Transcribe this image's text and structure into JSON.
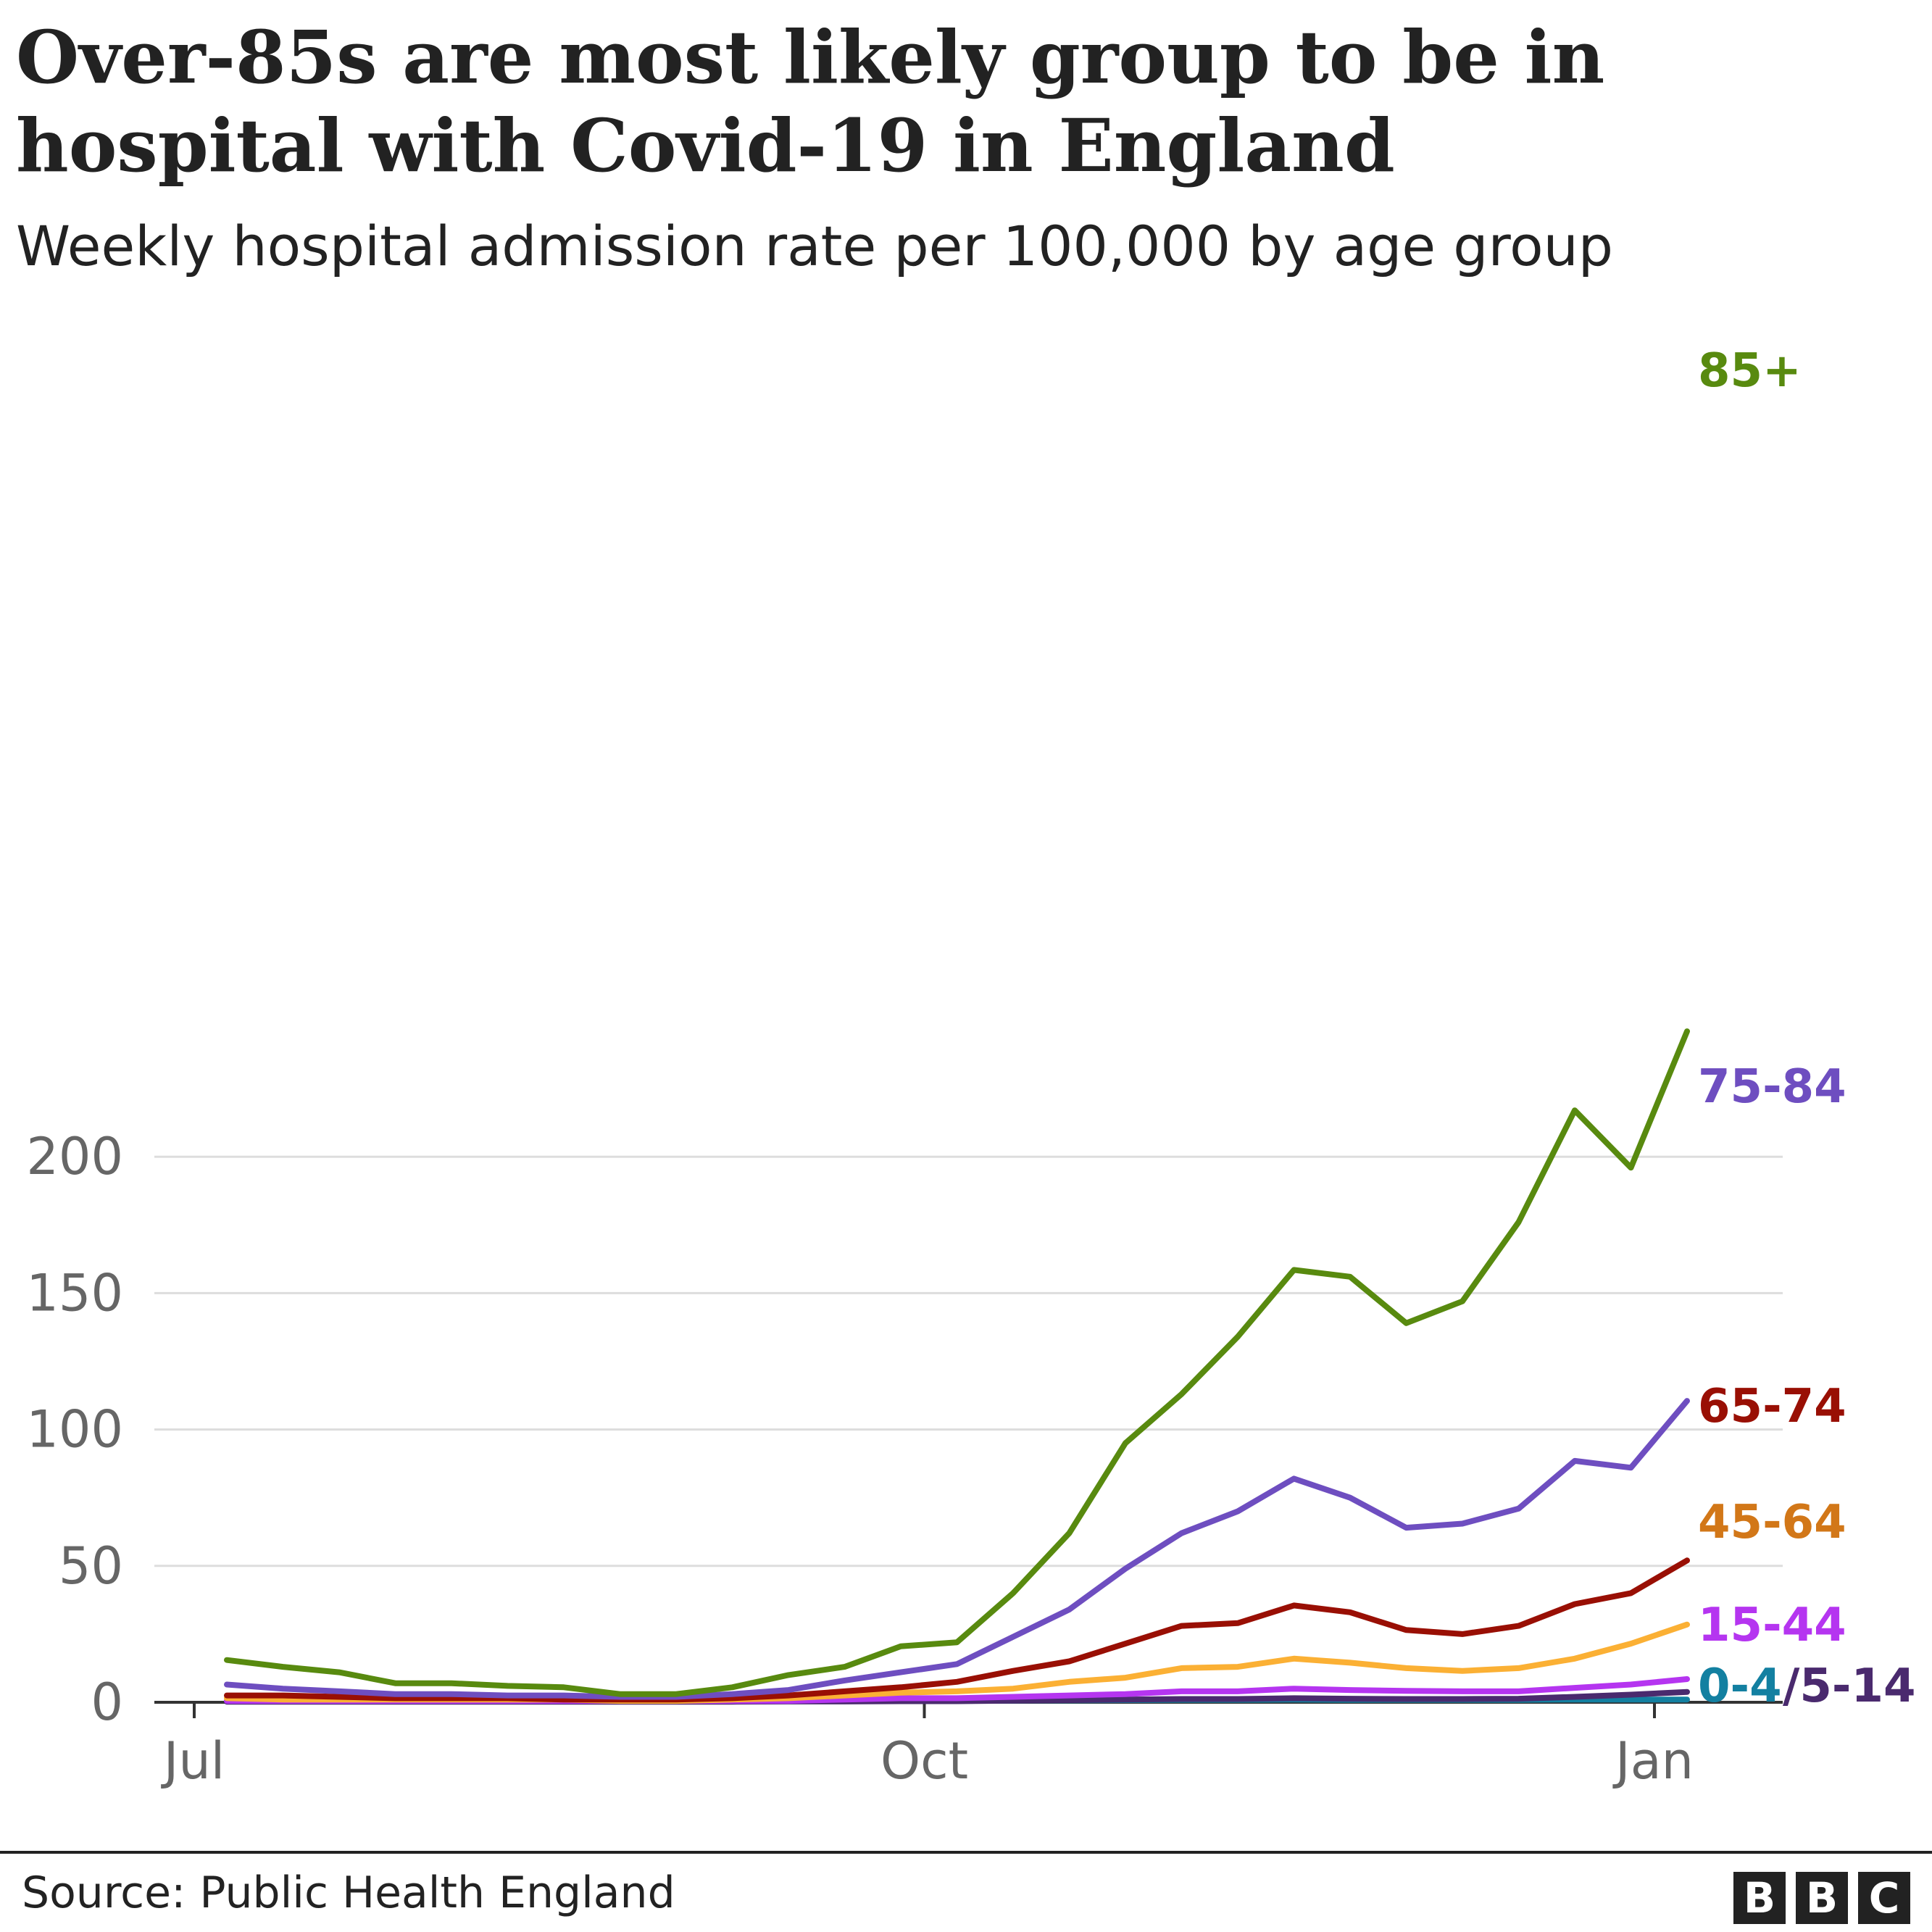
{
  "header": {
    "title": "Over-85s are most likely group to be in hospital with Covid-19 in England",
    "subtitle": "Weekly hospital admission rate per 100,000 by age group"
  },
  "footer": {
    "source": "Source: Public Health England",
    "logo_letters": [
      "B",
      "B",
      "C"
    ]
  },
  "chart_data": {
    "type": "line",
    "title": "Over-85s are most likely group to be in hospital with Covid-19 in England",
    "subtitle": "Weekly hospital admission rate per 100,000 by age group",
    "x_axis": {
      "ticks": [
        "Jul",
        "Oct",
        "Jan"
      ],
      "tick_weeks": [
        0,
        13,
        26
      ]
    },
    "y_axis": {
      "range": [
        0,
        250
      ],
      "ticks": [
        0,
        50,
        100,
        150,
        200
      ],
      "grid": true
    },
    "legend": "direct labels at line ends (right)",
    "x_week_index": [
      0,
      1,
      2,
      3,
      4,
      5,
      6,
      7,
      8,
      9,
      10,
      11,
      12,
      13,
      14,
      15,
      16,
      17,
      18,
      19,
      20,
      21,
      22,
      23,
      24,
      25,
      26
    ],
    "series": [
      {
        "name": "85+",
        "color": "#588a0f",
        "values": [
          15.5,
          13,
          11,
          7,
          7,
          6,
          5.5,
          3,
          3,
          5.5,
          10,
          13,
          20.5,
          22,
          40,
          62,
          95,
          113,
          134,
          158.5,
          156,
          139,
          147,
          176,
          217,
          196,
          246
        ]
      },
      {
        "name": "75-84",
        "color": "#6e4ec0",
        "values": [
          6.5,
          5,
          4,
          3,
          3,
          2.5,
          2.5,
          2,
          2,
          3,
          4.5,
          8,
          11,
          14,
          24,
          34,
          49,
          62,
          70,
          82,
          75,
          64,
          65.5,
          71,
          88.5,
          86,
          110.5
        ]
      },
      {
        "name": "65-74",
        "color": "#990f04",
        "values": [
          2.5,
          2.5,
          2,
          1.5,
          1.5,
          1.5,
          1,
          1,
          1,
          1.5,
          2.5,
          4,
          5.5,
          7.5,
          11.5,
          15,
          21.5,
          28,
          29,
          35.5,
          33,
          26.5,
          25,
          28,
          36,
          40,
          52
        ]
      },
      {
        "name": "45-64",
        "color": "#fbb034",
        "values": [
          1.5,
          1,
          1,
          1,
          1,
          1,
          1,
          0.5,
          0.5,
          1,
          1.5,
          2.5,
          3.5,
          4,
          5,
          7.5,
          9,
          12.5,
          13,
          16,
          14.5,
          12.5,
          11.5,
          12.5,
          16,
          21.5,
          28.5
        ]
      },
      {
        "name": "15-44",
        "color": "#b535f0",
        "values": [
          0.5,
          0.5,
          0.5,
          0.5,
          0.5,
          0.5,
          0.5,
          0.5,
          0.5,
          0.5,
          0.5,
          1,
          1.5,
          1.5,
          2,
          2.5,
          3,
          4,
          4,
          5,
          4.5,
          4.2,
          4,
          4,
          5.3,
          6.5,
          8.5
        ]
      },
      {
        "name": "5-14",
        "color": "#4a2a6e",
        "values": [
          0.2,
          0.2,
          0.2,
          0.2,
          0.2,
          0.2,
          0.2,
          0.2,
          0.2,
          0.2,
          0.3,
          0.3,
          0.4,
          0.4,
          0.6,
          0.8,
          1,
          1.2,
          1.2,
          1.5,
          1.3,
          1.2,
          1.2,
          1.3,
          2,
          2.8,
          3.8
        ]
      },
      {
        "name": "0-4",
        "color": "#1380a1",
        "values": [
          0.5,
          0.5,
          0.5,
          0.5,
          0.5,
          0.5,
          0.5,
          0.5,
          0.5,
          0.5,
          0.5,
          0.5,
          0.5,
          0.5,
          0.6,
          0.7,
          0.8,
          0.9,
          0.9,
          1,
          0.9,
          0.9,
          0.9,
          0.9,
          1,
          1,
          1
        ]
      }
    ],
    "end_labels": [
      {
        "text": "85+",
        "color": "#588a0f"
      },
      {
        "text": "75-84",
        "color": "#6e4ec0"
      },
      {
        "text": "65-74",
        "color": "#990f04"
      },
      {
        "text": "45-64",
        "color": "#d27718"
      },
      {
        "text": "15-44",
        "color": "#b535f0"
      },
      {
        "text": "0-4",
        "color": "#1380a1"
      },
      {
        "text": "/5-14",
        "color": "#4a2a6e"
      }
    ]
  }
}
